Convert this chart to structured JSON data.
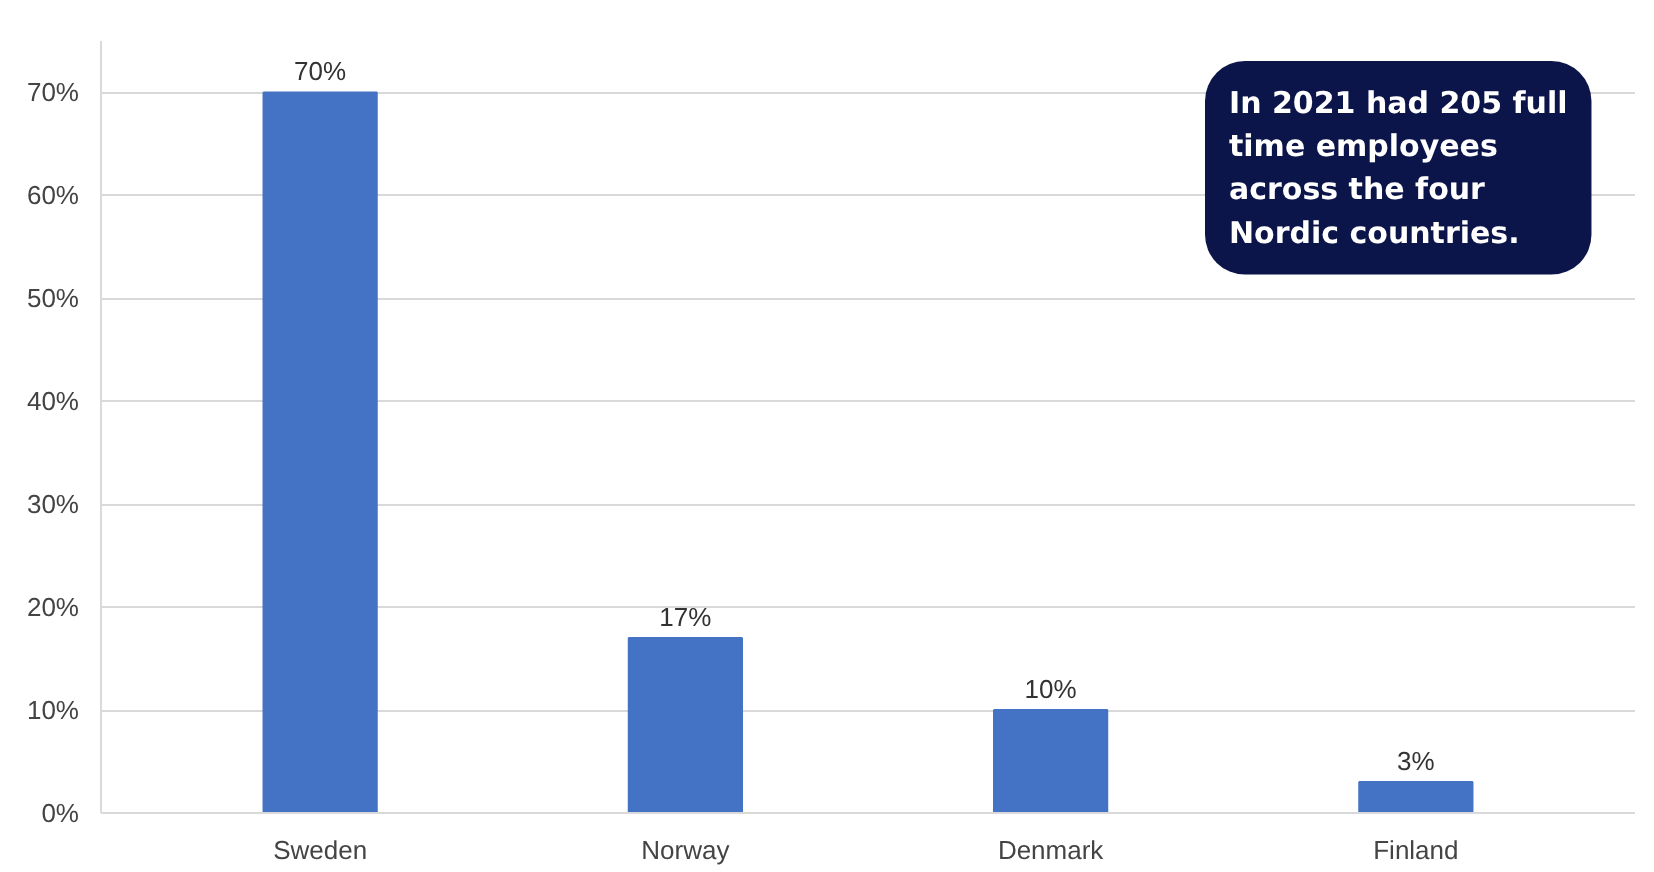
{
  "chart_data": {
    "type": "bar",
    "categories": [
      "Sweden",
      "Norway",
      "Denmark",
      "Finland"
    ],
    "values": [
      70,
      17,
      10,
      3
    ],
    "value_labels": [
      "70%",
      "17%",
      "10%",
      "3%"
    ],
    "color": "#4472c4",
    "ylim": [
      0,
      75
    ],
    "yticks": [
      {
        "value": 0,
        "label": "0%"
      },
      {
        "value": 10,
        "label": "10%"
      },
      {
        "value": 20,
        "label": "20%"
      },
      {
        "value": 30,
        "label": "30%"
      },
      {
        "value": 40,
        "label": "40%"
      },
      {
        "value": 50,
        "label": "50%"
      },
      {
        "value": 60,
        "label": "60%"
      },
      {
        "value": 70,
        "label": "70%"
      }
    ],
    "grid": "y",
    "annotations": [
      "In 2021 had 205 full time employees across the four Nordic countries."
    ]
  }
}
